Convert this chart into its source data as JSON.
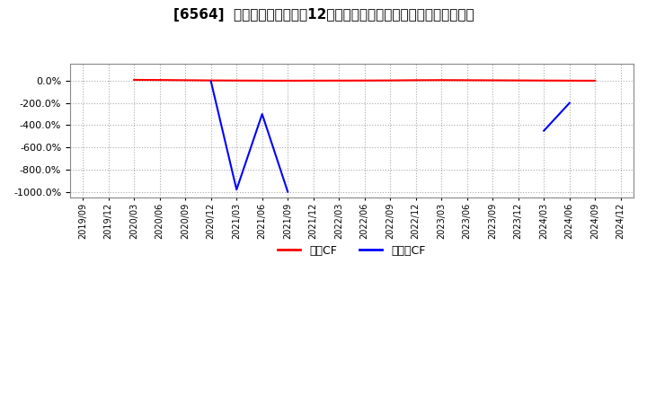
{
  "title": "[6564]  キャッシュフローの12か月移動合計の対前年同期増減率の推移",
  "title_fontsize": 11,
  "background_color": "#ffffff",
  "plot_bg_color": "#ffffff",
  "grid_color": "#aaaaaa",
  "ylim": [
    -1050,
    150
  ],
  "yticks": [
    0,
    -200,
    -400,
    -600,
    -800,
    -1000
  ],
  "legend_labels": [
    "営業CF",
    "フリーCF"
  ],
  "legend_colors": [
    "#ff0000",
    "#0000ff"
  ],
  "x_labels": [
    "2019/09",
    "2019/12",
    "2020/03",
    "2020/06",
    "2020/09",
    "2020/12",
    "2021/03",
    "2021/06",
    "2021/09",
    "2021/12",
    "2022/03",
    "2022/06",
    "2022/09",
    "2022/12",
    "2023/03",
    "2023/06",
    "2023/09",
    "2023/12",
    "2024/03",
    "2024/06",
    "2024/09",
    "2024/12"
  ],
  "営業CF": [
    null,
    null,
    8,
    7,
    5,
    3,
    2,
    1,
    0.5,
    1,
    1.5,
    2,
    3,
    5,
    6,
    5,
    4,
    3,
    2,
    1,
    0.5,
    null
  ],
  "フリーCF": [
    null,
    null,
    null,
    null,
    null,
    -5,
    -980,
    -300,
    -1000,
    null,
    null,
    null,
    null,
    null,
    null,
    null,
    null,
    null,
    -450,
    -200,
    null,
    null
  ]
}
